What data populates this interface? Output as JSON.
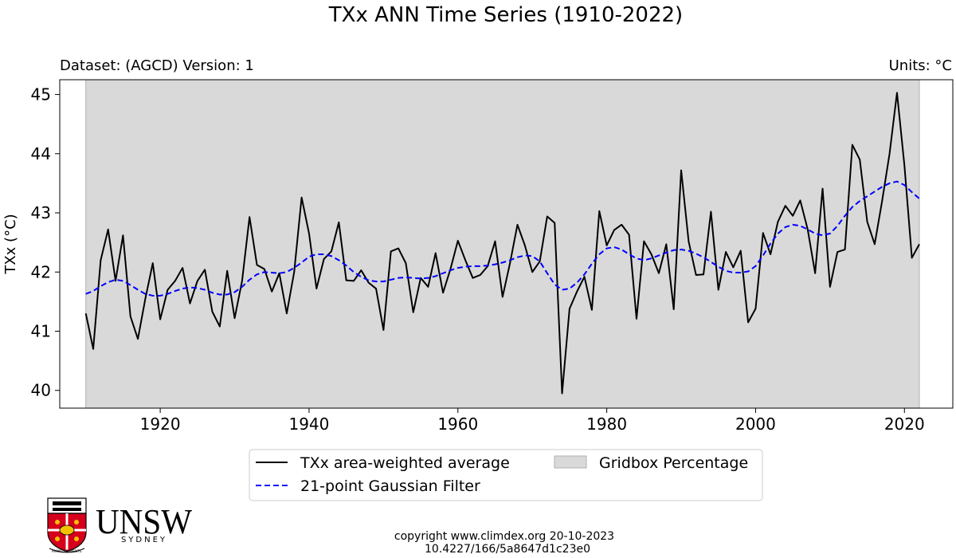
{
  "chart_data": {
    "type": "line",
    "title": "TXx ANN Time Series (1910-2022)",
    "subtitle_left": "Dataset: (AGCD) Version: 1",
    "subtitle_right": "Units: °C",
    "xlabel": "",
    "ylabel": "TXx (°C)",
    "xlim": [
      1906.5,
      2026.5
    ],
    "ylim": [
      39.7,
      45.25
    ],
    "xticks": [
      1920,
      1940,
      1960,
      1980,
      2000,
      2020
    ],
    "yticks": [
      40,
      41,
      42,
      43,
      44,
      45
    ],
    "gridbox_range": [
      1910,
      2022
    ],
    "x": [
      1910,
      1911,
      1912,
      1913,
      1914,
      1915,
      1916,
      1917,
      1918,
      1919,
      1920,
      1921,
      1922,
      1923,
      1924,
      1925,
      1926,
      1927,
      1928,
      1929,
      1930,
      1931,
      1932,
      1933,
      1934,
      1935,
      1936,
      1937,
      1938,
      1939,
      1940,
      1941,
      1942,
      1943,
      1944,
      1945,
      1946,
      1947,
      1948,
      1949,
      1950,
      1951,
      1952,
      1953,
      1954,
      1955,
      1956,
      1957,
      1958,
      1959,
      1960,
      1961,
      1962,
      1963,
      1964,
      1965,
      1966,
      1967,
      1968,
      1969,
      1970,
      1971,
      1972,
      1973,
      1974,
      1975,
      1976,
      1977,
      1978,
      1979,
      1980,
      1981,
      1982,
      1983,
      1984,
      1985,
      1986,
      1987,
      1988,
      1989,
      1990,
      1991,
      1992,
      1993,
      1994,
      1995,
      1996,
      1997,
      1998,
      1999,
      2000,
      2001,
      2002,
      2003,
      2004,
      2005,
      2006,
      2007,
      2008,
      2009,
      2010,
      2011,
      2012,
      2013,
      2014,
      2015,
      2016,
      2017,
      2018,
      2019,
      2020,
      2021,
      2022
    ],
    "series": [
      {
        "name": "TXx area-weighted average",
        "color": "#000000",
        "style": "solid",
        "values": [
          41.3,
          40.7,
          42.2,
          42.72,
          41.85,
          42.62,
          41.25,
          40.87,
          41.55,
          42.15,
          41.2,
          41.7,
          41.85,
          42.07,
          41.47,
          41.85,
          42.04,
          41.33,
          41.08,
          42.02,
          41.22,
          41.85,
          42.93,
          42.12,
          42.05,
          41.67,
          41.98,
          41.3,
          42.0,
          43.26,
          42.65,
          41.72,
          42.22,
          42.35,
          42.84,
          41.86,
          41.85,
          42.03,
          41.82,
          41.72,
          41.02,
          42.35,
          42.4,
          42.15,
          41.32,
          41.9,
          41.75,
          42.32,
          41.65,
          42.05,
          42.53,
          42.2,
          41.9,
          41.95,
          42.1,
          42.52,
          41.58,
          42.15,
          42.8,
          42.45,
          42.0,
          42.18,
          42.94,
          42.83,
          39.95,
          41.38,
          41.67,
          41.92,
          41.36,
          43.03,
          42.45,
          42.71,
          42.8,
          42.63,
          41.21,
          42.52,
          42.3,
          41.98,
          42.47,
          41.37,
          43.72,
          42.52,
          41.95,
          41.96,
          43.02,
          41.7,
          42.34,
          42.08,
          42.36,
          41.15,
          41.38,
          42.66,
          42.3,
          42.85,
          43.12,
          42.95,
          43.21,
          42.72,
          41.98,
          43.41,
          41.75,
          42.34,
          42.38,
          44.15,
          43.9,
          42.85,
          42.47,
          43.2,
          44.0,
          45.03,
          43.8,
          42.24,
          42.47
        ]
      },
      {
        "name": "21-point Gaussian Filter",
        "color": "#0000ff",
        "style": "dashed",
        "values": [
          41.63,
          41.68,
          41.76,
          41.83,
          41.87,
          41.85,
          41.78,
          41.7,
          41.63,
          41.6,
          41.6,
          41.63,
          41.68,
          41.72,
          41.74,
          41.73,
          41.7,
          41.65,
          41.62,
          41.62,
          41.66,
          41.75,
          41.87,
          41.96,
          42.0,
          41.99,
          41.98,
          42.0,
          42.07,
          42.16,
          42.26,
          42.3,
          42.3,
          42.27,
          42.2,
          42.11,
          42.0,
          41.92,
          41.86,
          41.84,
          41.84,
          41.87,
          41.9,
          41.91,
          41.9,
          41.89,
          41.9,
          41.93,
          41.98,
          42.03,
          42.07,
          42.09,
          42.1,
          42.1,
          42.11,
          42.13,
          42.16,
          42.2,
          42.25,
          42.28,
          42.27,
          42.18,
          41.98,
          41.79,
          41.7,
          41.72,
          41.82,
          41.96,
          42.14,
          42.3,
          42.4,
          42.42,
          42.38,
          42.3,
          42.23,
          42.2,
          42.23,
          42.28,
          42.33,
          42.37,
          42.38,
          42.36,
          42.31,
          42.25,
          42.17,
          42.09,
          42.02,
          41.99,
          41.99,
          42.01,
          42.1,
          42.28,
          42.48,
          42.65,
          42.76,
          42.8,
          42.78,
          42.72,
          42.65,
          42.62,
          42.65,
          42.78,
          42.95,
          43.1,
          43.2,
          43.28,
          43.36,
          43.44,
          43.5,
          43.53,
          43.47,
          43.35,
          43.24
        ]
      }
    ],
    "legend": {
      "line_label": "TXx area-weighted average",
      "filter_label": "21-point Gaussian Filter",
      "gridbox_label": "Gridbox Percentage",
      "position": "bottom-center"
    },
    "colors": {
      "gridbox_fill": "#d9d9d9",
      "gridbox_edge": "#b0b0b0"
    }
  },
  "footer": {
    "copyright": "copyright www.climdex.org 20-10-2023",
    "doi": "10.4227/166/5a8647d1c23e0"
  },
  "logo": {
    "name": "UNSW",
    "sub": "SYDNEY",
    "motto": "MANU ET MENTE",
    "icon": "unsw-crest-icon"
  }
}
